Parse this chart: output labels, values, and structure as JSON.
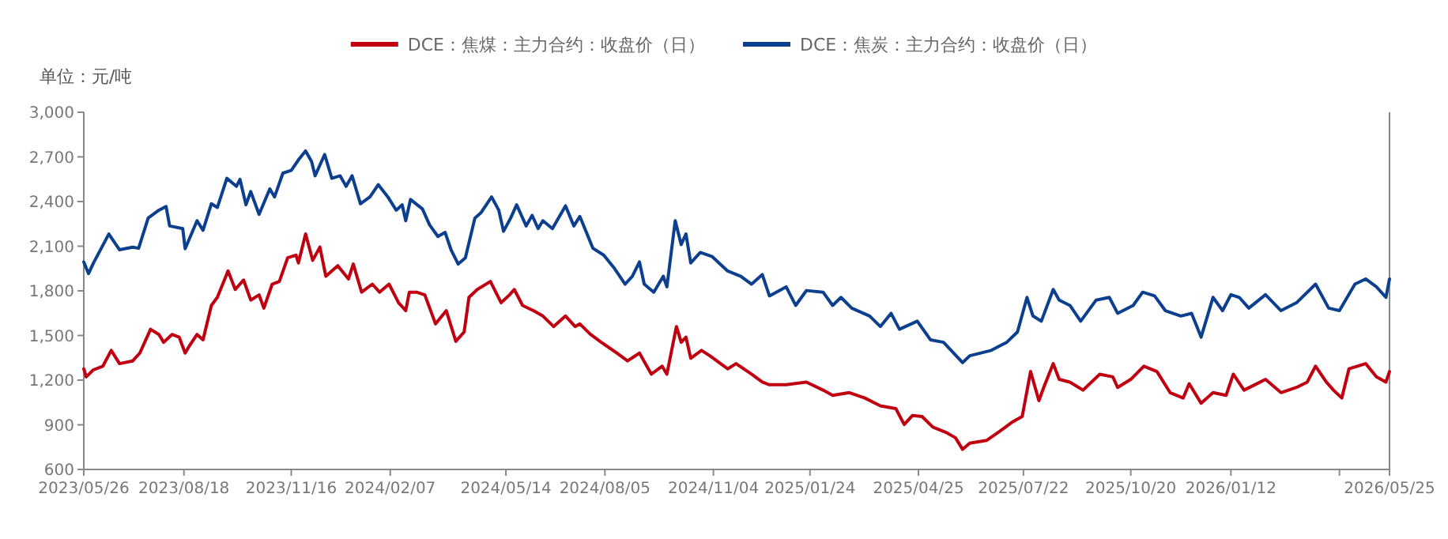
{
  "chart_data": {
    "type": "line",
    "legend": "top",
    "annotations": [
      "单位：元/吨"
    ],
    "xlim": [
      "2023-05-26",
      "2026-05-25"
    ],
    "ylim": [
      600,
      3000
    ],
    "xticks": [
      {
        "value": "2023-05-26",
        "label": "2023/05/26"
      },
      {
        "value": "2023-08-18",
        "label": "2023/08/18"
      },
      {
        "value": "2023-11-16",
        "label": "2023/11/16"
      },
      {
        "value": "2024-02-07",
        "label": "2024/02/07"
      },
      {
        "value": "2024-05-14",
        "label": "2024/05/14"
      },
      {
        "value": "2024-08-05",
        "label": "2024/08/05"
      },
      {
        "value": "2024-11-04",
        "label": "2024/11/04"
      },
      {
        "value": "2025-01-24",
        "label": "2025/01/24"
      },
      {
        "value": "2025-04-25",
        "label": "2025/04/25"
      },
      {
        "value": "2025-07-22",
        "label": "2025/07/22"
      },
      {
        "value": "2025-10-20",
        "label": "2025/10/20"
      },
      {
        "value": "2026-01-12",
        "label": "2026/01/12"
      },
      {
        "value": "2026-04-13",
        "label": null
      },
      {
        "value": "2026-05-25",
        "label": "2026/05/25"
      }
    ],
    "yticks": [
      {
        "value": 600,
        "label": "600"
      },
      {
        "value": 900,
        "label": "900"
      },
      {
        "value": 1200,
        "label": "1,200"
      },
      {
        "value": 1500,
        "label": "1,500"
      },
      {
        "value": 1800,
        "label": "1,800"
      },
      {
        "value": 2100,
        "label": "2,100"
      },
      {
        "value": 2400,
        "label": "2,400"
      },
      {
        "value": 2700,
        "label": "2,700"
      },
      {
        "value": 3000,
        "label": "3,000"
      }
    ],
    "series": [
      {
        "name": "DCE：焦煤：主力合约：收盘价（日）",
        "color": "#c00010",
        "x": [
          "2023-05-26",
          "2023-05-28",
          "2023-06-03",
          "2023-06-11",
          "2023-06-18",
          "2023-06-25",
          "2023-07-06",
          "2023-07-12",
          "2023-07-21",
          "2023-07-28",
          "2023-08-01",
          "2023-08-08",
          "2023-08-14",
          "2023-08-19",
          "2023-08-23",
          "2023-08-29",
          "2023-09-03",
          "2023-09-10",
          "2023-09-15",
          "2023-09-24",
          "2023-09-30",
          "2023-10-07",
          "2023-10-13",
          "2023-10-20",
          "2023-10-24",
          "2023-10-31",
          "2023-11-06",
          "2023-11-13",
          "2023-11-20",
          "2023-11-22",
          "2023-11-28",
          "2023-12-04",
          "2023-12-10",
          "2023-12-15",
          "2023-12-25",
          "2024-01-03",
          "2024-01-07",
          "2024-01-14",
          "2024-01-23",
          "2024-01-29",
          "2024-02-06",
          "2024-02-14",
          "2024-02-20",
          "2024-02-23",
          "2024-02-29",
          "2024-03-07",
          "2024-03-16",
          "2024-03-25",
          "2024-04-02",
          "2024-04-09",
          "2024-04-13",
          "2024-04-20",
          "2024-05-01",
          "2024-05-10",
          "2024-05-17",
          "2024-05-21",
          "2024-05-28",
          "2024-06-06",
          "2024-06-14",
          "2024-06-23",
          "2024-07-03",
          "2024-07-11",
          "2024-07-15",
          "2024-07-24",
          "2024-08-02",
          "2024-08-15",
          "2024-08-24",
          "2024-09-03",
          "2024-09-13",
          "2024-09-22",
          "2024-09-26",
          "2024-10-04",
          "2024-10-08",
          "2024-10-12",
          "2024-10-16",
          "2024-10-25",
          "2024-11-01",
          "2024-11-16",
          "2024-11-23",
          "2024-12-06",
          "2024-12-15",
          "2024-12-21",
          "2025-01-04",
          "2025-01-21",
          "2025-02-04",
          "2025-02-12",
          "2025-02-26",
          "2025-03-11",
          "2025-03-24",
          "2025-04-06",
          "2025-04-13",
          "2025-04-20",
          "2025-04-28",
          "2025-05-07",
          "2025-05-18",
          "2025-05-26",
          "2025-06-01",
          "2025-06-07",
          "2025-06-21",
          "2025-07-02",
          "2025-07-13",
          "2025-07-21",
          "2025-07-28",
          "2025-08-04",
          "2025-08-08",
          "2025-08-16",
          "2025-08-21",
          "2025-08-30",
          "2025-09-10",
          "2025-09-24",
          "2025-10-05",
          "2025-10-09",
          "2025-10-20",
          "2025-10-31",
          "2025-11-11",
          "2025-11-22",
          "2025-12-03",
          "2025-12-08",
          "2025-12-18",
          "2025-12-28",
          "2026-01-08",
          "2026-01-14",
          "2026-01-23",
          "2026-02-01",
          "2026-02-10",
          "2026-02-23",
          "2026-03-08",
          "2026-03-17",
          "2026-03-24",
          "2026-04-02",
          "2026-04-08",
          "2026-04-15",
          "2026-04-21",
          "2026-05-05",
          "2026-05-14",
          "2026-05-22",
          "2026-05-25"
        ],
        "values": [
          1276,
          1222,
          1269,
          1294,
          1400,
          1311,
          1329,
          1382,
          1542,
          1507,
          1454,
          1507,
          1489,
          1382,
          1436,
          1507,
          1471,
          1702,
          1756,
          1934,
          1809,
          1873,
          1738,
          1773,
          1684,
          1845,
          1863,
          2022,
          2040,
          1987,
          2182,
          2005,
          2094,
          1898,
          1969,
          1880,
          1980,
          1791,
          1845,
          1791,
          1845,
          1720,
          1667,
          1791,
          1791,
          1773,
          1578,
          1667,
          1461,
          1524,
          1756,
          1809,
          1863,
          1720,
          1773,
          1809,
          1702,
          1667,
          1631,
          1560,
          1631,
          1560,
          1578,
          1507,
          1454,
          1382,
          1329,
          1382,
          1240,
          1294,
          1240,
          1560,
          1454,
          1489,
          1347,
          1400,
          1364,
          1276,
          1311,
          1240,
          1187,
          1169,
          1169,
          1187,
          1133,
          1098,
          1116,
          1080,
          1027,
          1009,
          902,
          963,
          956,
          885,
          849,
          813,
          735,
          777,
          795,
          856,
          920,
          956,
          1258,
          1062,
          1151,
          1311,
          1205,
          1187,
          1133,
          1240,
          1222,
          1151,
          1205,
          1294,
          1258,
          1116,
          1080,
          1176,
          1045,
          1116,
          1098,
          1240,
          1133,
          1169,
          1205,
          1116,
          1151,
          1187,
          1294,
          1187,
          1133,
          1080,
          1276,
          1311,
          1222,
          1187,
          1258
        ]
      },
      {
        "name": "DCE：焦炭：主力合约：收盘价（日）",
        "color": "#0d3f8f",
        "x": [
          "2023-05-26",
          "2023-05-30",
          "2023-06-03",
          "2023-06-16",
          "2023-06-25",
          "2023-07-06",
          "2023-07-11",
          "2023-07-19",
          "2023-07-28",
          "2023-08-03",
          "2023-08-06",
          "2023-08-17",
          "2023-08-19",
          "2023-08-29",
          "2023-09-03",
          "2023-09-10",
          "2023-09-15",
          "2023-09-23",
          "2023-10-01",
          "2023-10-04",
          "2023-10-09",
          "2023-10-13",
          "2023-10-20",
          "2023-10-29",
          "2023-11-02",
          "2023-11-09",
          "2023-11-16",
          "2023-11-22",
          "2023-11-28",
          "2023-12-03",
          "2023-12-06",
          "2023-12-14",
          "2023-12-20",
          "2023-12-27",
          "2024-01-01",
          "2024-01-06",
          "2024-01-13",
          "2024-01-21",
          "2024-01-28",
          "2024-02-05",
          "2024-02-12",
          "2024-02-17",
          "2024-02-20",
          "2024-02-24",
          "2024-03-05",
          "2024-03-11",
          "2024-03-18",
          "2024-03-24",
          "2024-03-29",
          "2024-04-04",
          "2024-04-10",
          "2024-04-18",
          "2024-04-23",
          "2024-05-02",
          "2024-05-08",
          "2024-05-12",
          "2024-05-18",
          "2024-05-23",
          "2024-05-31",
          "2024-06-05",
          "2024-06-10",
          "2024-06-14",
          "2024-06-22",
          "2024-07-03",
          "2024-07-10",
          "2024-07-15",
          "2024-07-26",
          "2024-08-04",
          "2024-08-13",
          "2024-08-22",
          "2024-08-28",
          "2024-09-03",
          "2024-09-07",
          "2024-09-15",
          "2024-09-23",
          "2024-09-26",
          "2024-10-03",
          "2024-10-08",
          "2024-10-12",
          "2024-10-16",
          "2024-10-24",
          "2024-11-03",
          "2024-11-16",
          "2024-11-27",
          "2024-12-06",
          "2024-12-15",
          "2024-12-21",
          "2025-01-04",
          "2025-01-12",
          "2025-01-21",
          "2025-02-04",
          "2025-02-12",
          "2025-02-19",
          "2025-02-28",
          "2025-03-15",
          "2025-03-24",
          "2025-04-02",
          "2025-04-09",
          "2025-04-24",
          "2025-05-05",
          "2025-05-16",
          "2025-06-01",
          "2025-06-07",
          "2025-06-25",
          "2025-07-08",
          "2025-07-17",
          "2025-07-25",
          "2025-07-30",
          "2025-08-06",
          "2025-08-16",
          "2025-08-21",
          "2025-08-30",
          "2025-09-08",
          "2025-09-21",
          "2025-10-02",
          "2025-10-09",
          "2025-10-22",
          "2025-10-30",
          "2025-11-09",
          "2025-11-18",
          "2025-12-01",
          "2025-12-10",
          "2025-12-18",
          "2025-12-28",
          "2026-01-05",
          "2026-01-12",
          "2026-01-19",
          "2026-01-27",
          "2026-02-10",
          "2026-02-23",
          "2026-03-08",
          "2026-03-24",
          "2026-04-04",
          "2026-04-13",
          "2026-04-26",
          "2026-05-05",
          "2026-05-14",
          "2026-05-22",
          "2026-05-25"
        ],
        "values": [
          1994,
          1916,
          1985,
          2182,
          2076,
          2093,
          2086,
          2289,
          2342,
          2367,
          2236,
          2218,
          2083,
          2271,
          2207,
          2385,
          2360,
          2556,
          2502,
          2549,
          2378,
          2467,
          2314,
          2485,
          2431,
          2591,
          2609,
          2680,
          2740,
          2669,
          2573,
          2716,
          2556,
          2573,
          2502,
          2573,
          2385,
          2431,
          2513,
          2431,
          2342,
          2378,
          2271,
          2414,
          2350,
          2243,
          2165,
          2193,
          2076,
          1980,
          2022,
          2289,
          2324,
          2431,
          2342,
          2200,
          2289,
          2378,
          2236,
          2307,
          2218,
          2271,
          2218,
          2371,
          2236,
          2300,
          2086,
          2040,
          1951,
          1845,
          1898,
          1994,
          1845,
          1791,
          1898,
          1827,
          2271,
          2111,
          2182,
          1987,
          2058,
          2030,
          1933,
          1898,
          1845,
          1909,
          1766,
          1827,
          1702,
          1802,
          1791,
          1702,
          1756,
          1684,
          1631,
          1560,
          1649,
          1542,
          1596,
          1471,
          1454,
          1318,
          1364,
          1400,
          1454,
          1524,
          1756,
          1631,
          1596,
          1809,
          1738,
          1702,
          1596,
          1738,
          1756,
          1649,
          1702,
          1791,
          1766,
          1667,
          1631,
          1649,
          1489,
          1756,
          1667,
          1774,
          1756,
          1684,
          1774,
          1667,
          1720,
          1845,
          1684,
          1667,
          1845,
          1880,
          1827,
          1756,
          1880
        ]
      }
    ]
  }
}
